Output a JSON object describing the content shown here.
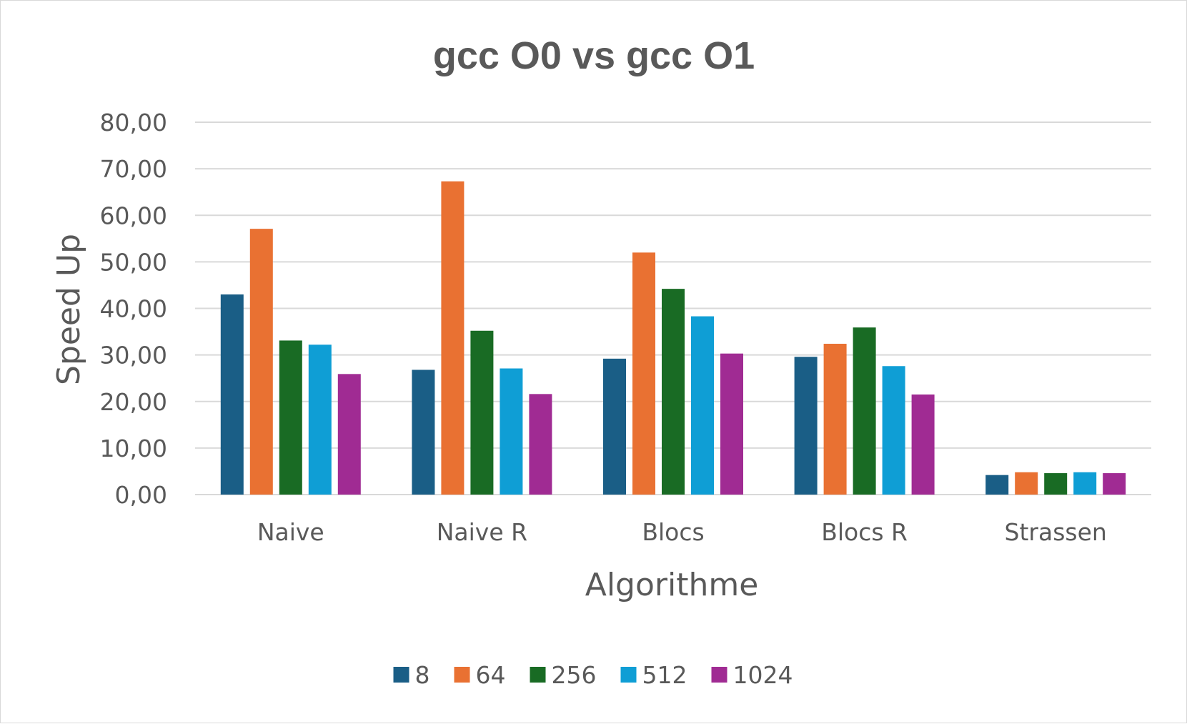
{
  "chart_data": {
    "type": "bar",
    "title": "gcc O0 vs gcc O1",
    "xlabel": "Algorithme",
    "ylabel": "Speed Up",
    "ylim": [
      0,
      80
    ],
    "y_ticks": [
      "0,00",
      "10,00",
      "20,00",
      "30,00",
      "40,00",
      "50,00",
      "60,00",
      "70,00",
      "80,00"
    ],
    "grid": true,
    "legend_position": "bottom",
    "categories": [
      "Naive",
      "Naive R",
      "Blocs",
      "Blocs R",
      "Strassen"
    ],
    "series": [
      {
        "name": "8",
        "color": "#1a5e86",
        "values": [
          43.0,
          26.8,
          29.2,
          29.6,
          4.2
        ]
      },
      {
        "name": "64",
        "color": "#e97132",
        "values": [
          57.1,
          67.3,
          52.0,
          32.4,
          4.8
        ]
      },
      {
        "name": "256",
        "color": "#196b24",
        "values": [
          33.1,
          35.2,
          44.2,
          35.9,
          4.6
        ]
      },
      {
        "name": "512",
        "color": "#0f9ed5",
        "values": [
          32.2,
          27.1,
          38.3,
          27.6,
          4.8
        ]
      },
      {
        "name": "1024",
        "color": "#a02b93",
        "values": [
          25.9,
          21.6,
          30.3,
          21.5,
          4.6
        ]
      }
    ]
  }
}
